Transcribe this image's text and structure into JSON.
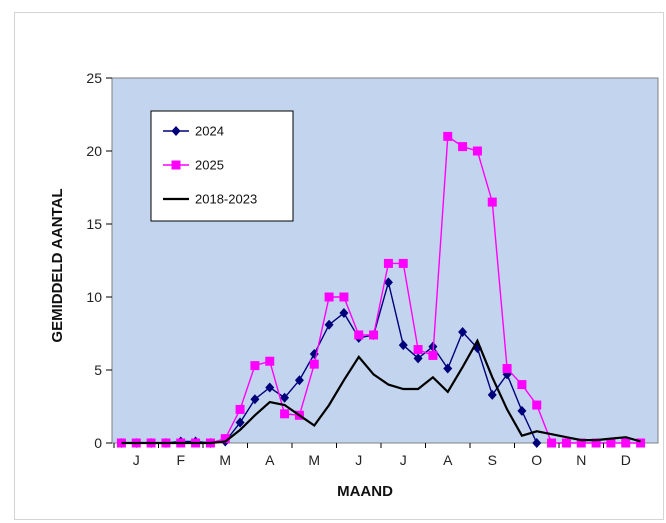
{
  "chart_data": {
    "type": "line",
    "title": "",
    "xlabel": "MAAND",
    "ylabel": "GEMIDDELD AANTAL",
    "ylim": [
      0,
      25
    ],
    "yticks": [
      0,
      5,
      10,
      15,
      20,
      25
    ],
    "x_points": 36,
    "month_ticks": [
      "J",
      "F",
      "M",
      "A",
      "M",
      "J",
      "J",
      "A",
      "S",
      "O",
      "N",
      "D"
    ],
    "plot_background": "#c3d5ee",
    "legend_position": "top-left",
    "series": [
      {
        "name": "2024",
        "color": "#00007a",
        "marker": "diamond",
        "values": [
          0,
          0,
          0,
          0,
          0.1,
          0.1,
          0,
          0.1,
          1.4,
          3.0,
          3.8,
          3.1,
          4.3,
          6.1,
          8.1,
          8.9,
          7.2,
          7.4,
          11.0,
          6.7,
          5.8,
          6.6,
          5.1,
          7.6,
          6.5,
          3.3,
          4.7,
          2.2,
          0,
          null,
          null,
          null,
          null,
          null,
          null,
          null
        ]
      },
      {
        "name": "2025",
        "color": "#ff00ff",
        "marker": "square",
        "values": [
          0,
          0,
          0,
          0,
          0,
          0,
          0,
          0.3,
          2.3,
          5.3,
          5.6,
          2.0,
          1.9,
          5.4,
          10.0,
          10.0,
          7.4,
          7.4,
          12.3,
          12.3,
          6.4,
          6.0,
          21.0,
          20.3,
          20.0,
          16.5,
          5.1,
          4.0,
          2.6,
          0,
          0,
          0,
          0,
          0,
          0,
          0
        ]
      },
      {
        "name": "2018-2023",
        "color": "#000000",
        "marker": "none",
        "values": [
          0,
          0,
          0,
          0,
          0,
          0,
          0,
          0.1,
          0.9,
          1.9,
          2.8,
          2.6,
          1.9,
          1.2,
          2.6,
          4.3,
          5.9,
          4.7,
          4.0,
          3.7,
          3.7,
          4.5,
          3.5,
          5.2,
          7.0,
          4.5,
          2.3,
          0.5,
          0.8,
          0.6,
          0.4,
          0.2,
          0.2,
          0.3,
          0.4,
          0.1
        ]
      }
    ]
  }
}
